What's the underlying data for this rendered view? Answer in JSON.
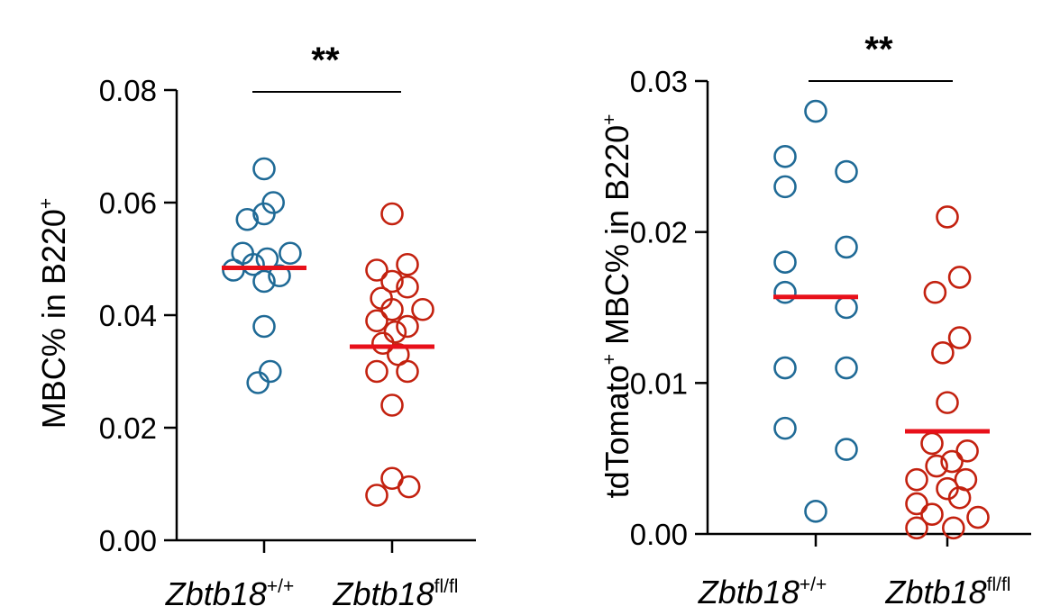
{
  "colors": {
    "group1": "#1f6a96",
    "group2": "#c3210f",
    "median": "#e8101a",
    "axis": "#000000"
  },
  "chart_data": [
    {
      "type": "scatter",
      "title": "",
      "ylabel": {
        "main": "MBC% in B220",
        "sup": "+"
      },
      "ylim": [
        0,
        0.08
      ],
      "yticks": [
        "0.00",
        "0.02",
        "0.04",
        "0.06",
        "0.08"
      ],
      "categories": [
        {
          "name": "Zbtb18",
          "sup": "+/+"
        },
        {
          "name": "Zbtb18",
          "sup": "fl/fl"
        }
      ],
      "significance": "**",
      "series": [
        {
          "name": "Zbtb18+/+",
          "median": 0.0484,
          "points": [
            {
              "offset": 0,
              "y": 0.066
            },
            {
              "offset": 0.6,
              "y": 0.06
            },
            {
              "offset": -1.1,
              "y": 0.057
            },
            {
              "offset": 0,
              "y": 0.058
            },
            {
              "offset": -1.4,
              "y": 0.051
            },
            {
              "offset": 1.7,
              "y": 0.051
            },
            {
              "offset": 0.2,
              "y": 0.05
            },
            {
              "offset": -0.7,
              "y": 0.049
            },
            {
              "offset": -2.0,
              "y": 0.048
            },
            {
              "offset": 1.0,
              "y": 0.047
            },
            {
              "offset": 0,
              "y": 0.046
            },
            {
              "offset": 0,
              "y": 0.038
            },
            {
              "offset": 0.4,
              "y": 0.03
            },
            {
              "offset": -0.4,
              "y": 0.028
            }
          ]
        },
        {
          "name": "Zbtb18fl/fl",
          "median": 0.0344,
          "points": [
            {
              "offset": 0,
              "y": 0.058
            },
            {
              "offset": 1.0,
              "y": 0.049
            },
            {
              "offset": -1.0,
              "y": 0.048
            },
            {
              "offset": 0,
              "y": 0.046
            },
            {
              "offset": 1.0,
              "y": 0.045
            },
            {
              "offset": -0.7,
              "y": 0.043
            },
            {
              "offset": 0,
              "y": 0.041
            },
            {
              "offset": 2.0,
              "y": 0.041
            },
            {
              "offset": -1.0,
              "y": 0.039
            },
            {
              "offset": 1.0,
              "y": 0.038
            },
            {
              "offset": 0.2,
              "y": 0.037
            },
            {
              "offset": -0.6,
              "y": 0.035
            },
            {
              "offset": 0.4,
              "y": 0.033
            },
            {
              "offset": -1.0,
              "y": 0.03
            },
            {
              "offset": 1.0,
              "y": 0.03
            },
            {
              "offset": 0,
              "y": 0.024
            },
            {
              "offset": 0,
              "y": 0.011
            },
            {
              "offset": 1.1,
              "y": 0.0095
            },
            {
              "offset": -1.0,
              "y": 0.008
            }
          ]
        }
      ]
    },
    {
      "type": "scatter",
      "title": "",
      "ylabel": {
        "pre": "tdTomato",
        "pre_sup": "+",
        "main": " MBC% in B220",
        "sup": "+"
      },
      "ylim": [
        0,
        0.03
      ],
      "yticks": [
        "0.00",
        "0.01",
        "0.02",
        "0.03"
      ],
      "categories": [
        {
          "name": "Zbtb18",
          "sup": "+/+"
        },
        {
          "name": "Zbtb18",
          "sup": "fl/fl"
        }
      ],
      "significance": "**",
      "series": [
        {
          "name": "Zbtb18+/+",
          "median": 0.0157,
          "points": [
            {
              "offset": 0,
              "y": 0.028
            },
            {
              "offset": -2.0,
              "y": 0.025
            },
            {
              "offset": 2.0,
              "y": 0.024
            },
            {
              "offset": -2.0,
              "y": 0.023
            },
            {
              "offset": 2.0,
              "y": 0.019
            },
            {
              "offset": -2.0,
              "y": 0.018
            },
            {
              "offset": -2.0,
              "y": 0.016
            },
            {
              "offset": 2.0,
              "y": 0.015
            },
            {
              "offset": -2.0,
              "y": 0.011
            },
            {
              "offset": 2.0,
              "y": 0.011
            },
            {
              "offset": -2.0,
              "y": 0.007
            },
            {
              "offset": 2.0,
              "y": 0.0056
            },
            {
              "offset": 0,
              "y": 0.0015
            }
          ]
        },
        {
          "name": "Zbtb18fl/fl",
          "median": 0.0068,
          "points": [
            {
              "offset": 0,
              "y": 0.021
            },
            {
              "offset": 0.8,
              "y": 0.017
            },
            {
              "offset": -0.8,
              "y": 0.016
            },
            {
              "offset": 0.8,
              "y": 0.013
            },
            {
              "offset": -0.3,
              "y": 0.012
            },
            {
              "offset": 0,
              "y": 0.0087
            },
            {
              "offset": -1.0,
              "y": 0.006
            },
            {
              "offset": 1.3,
              "y": 0.0055
            },
            {
              "offset": 0.3,
              "y": 0.0048
            },
            {
              "offset": -0.7,
              "y": 0.0045
            },
            {
              "offset": -2.0,
              "y": 0.0036
            },
            {
              "offset": 1.2,
              "y": 0.0036
            },
            {
              "offset": 0,
              "y": 0.003
            },
            {
              "offset": -2.0,
              "y": 0.002
            },
            {
              "offset": 0.8,
              "y": 0.0024
            },
            {
              "offset": -1.0,
              "y": 0.0013
            },
            {
              "offset": 2.0,
              "y": 0.0011
            },
            {
              "offset": -2.0,
              "y": 0.0004
            },
            {
              "offset": 0.4,
              "y": 0.0004
            }
          ]
        }
      ]
    }
  ]
}
